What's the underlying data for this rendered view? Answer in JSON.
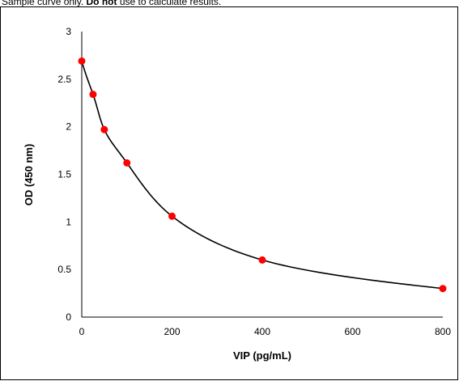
{
  "caption": {
    "prefix": "Sample curve only. ",
    "bold": "Do not",
    "suffix": " use to calculate results."
  },
  "chart_data": {
    "type": "scatter",
    "title": "",
    "xlabel": "VIP (pg/mL)",
    "ylabel": "OD (450 nm)",
    "xlim": [
      0,
      800
    ],
    "ylim": [
      0,
      3
    ],
    "x_ticks": [
      "0",
      "200",
      "400",
      "600",
      "800"
    ],
    "y_ticks": [
      "0",
      "0.5",
      "1",
      "1.5",
      "2",
      "2.5",
      "3"
    ],
    "series": [
      {
        "x": [
          0,
          25,
          50,
          100,
          200,
          400,
          800
        ],
        "y": [
          2.69,
          2.34,
          1.97,
          1.62,
          1.06,
          0.6,
          0.3
        ]
      }
    ],
    "fit_curve": true,
    "point_color": "#ff0000",
    "curve_color": "#000000",
    "grid": false
  }
}
